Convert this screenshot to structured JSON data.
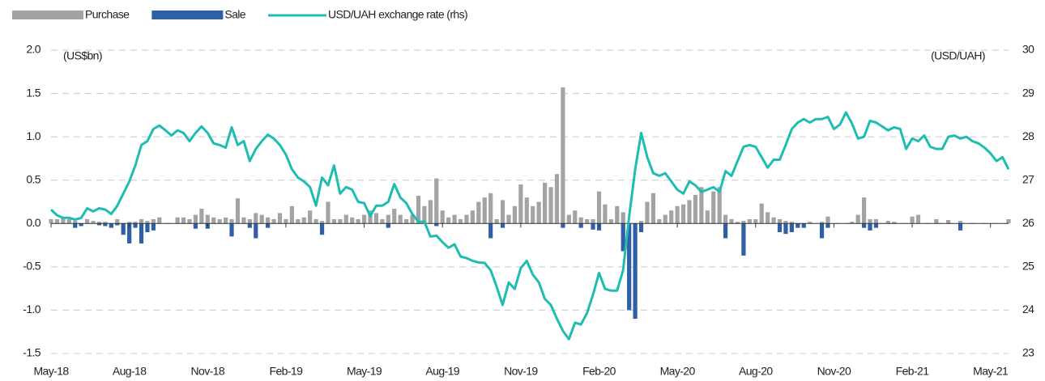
{
  "chart_data": {
    "type": "bar_line",
    "y_label": "(US$bn)",
    "y2_label": "(USD/UAH)",
    "categories": [
      "May-18",
      null,
      null,
      null,
      null,
      null,
      null,
      null,
      null,
      null,
      null,
      null,
      null,
      "Aug-18",
      null,
      null,
      null,
      null,
      null,
      null,
      null,
      null,
      null,
      null,
      null,
      null,
      "Nov-18",
      null,
      null,
      null,
      null,
      null,
      null,
      null,
      null,
      null,
      null,
      null,
      null,
      "Feb-19",
      null,
      null,
      null,
      null,
      null,
      null,
      null,
      null,
      null,
      null,
      null,
      null,
      "May-19",
      null,
      null,
      null,
      null,
      null,
      null,
      null,
      null,
      null,
      null,
      null,
      null,
      "Aug-19",
      null,
      null,
      null,
      null,
      null,
      null,
      null,
      null,
      null,
      null,
      null,
      null,
      "Nov-19",
      null,
      null,
      null,
      null,
      null,
      null,
      null,
      null,
      null,
      null,
      null,
      null,
      "Feb-20",
      null,
      null,
      null,
      null,
      null,
      null,
      null,
      null,
      null,
      null,
      null,
      null,
      "May-20",
      null,
      null,
      null,
      null,
      null,
      null,
      null,
      null,
      null,
      null,
      null,
      null,
      "Aug-20",
      null,
      null,
      null,
      null,
      null,
      null,
      null,
      null,
      null,
      null,
      null,
      null,
      "Nov-20",
      null,
      null,
      null,
      null,
      null,
      null,
      null,
      null,
      null,
      null,
      null,
      null,
      "Feb-21",
      null,
      null,
      null,
      null,
      null,
      null,
      null,
      null,
      null,
      null,
      null,
      null,
      "May-21",
      null,
      null,
      null
    ],
    "series": [
      {
        "name": "Purchase",
        "type": "bar",
        "color": "#a3a3a3",
        "values": [
          0.05,
          0.05,
          0.07,
          0.05,
          0.03,
          0,
          0.05,
          0.03,
          0.02,
          0.02,
          0,
          0.05,
          0,
          0.02,
          0.02,
          0.05,
          0.03,
          0.05,
          0.07,
          0,
          0,
          0.07,
          0.07,
          0.05,
          0.1,
          0.17,
          0.1,
          0.07,
          0.05,
          0.07,
          0.05,
          0.29,
          0.07,
          0.05,
          0.12,
          0.1,
          0.07,
          0.05,
          0.12,
          0.05,
          0.2,
          0.05,
          0.07,
          0.15,
          0.05,
          0.03,
          0.25,
          0.05,
          0.05,
          0.1,
          0.07,
          0.05,
          0.1,
          0.15,
          0.12,
          0.05,
          0.1,
          0.17,
          0.1,
          0.05,
          0.1,
          0.32,
          0.2,
          0.27,
          0.52,
          0.15,
          0.07,
          0.1,
          0.05,
          0.1,
          0.15,
          0.25,
          0.3,
          0.35,
          0.05,
          0.27,
          0.1,
          0.2,
          0.45,
          0.3,
          0.2,
          0.25,
          0.47,
          0.42,
          0.57,
          1.57,
          0.1,
          0.15,
          0.07,
          0.05,
          0.05,
          0.37,
          0.22,
          0.05,
          0.2,
          0.13,
          0,
          0,
          0.03,
          0.25,
          0.35,
          0.05,
          0.1,
          0.15,
          0.2,
          0.22,
          0.27,
          0.33,
          0.42,
          0.15,
          0.37,
          0.42,
          0.1,
          0.05,
          0.02,
          0.03,
          0.05,
          0.05,
          0.23,
          0.13,
          0.07,
          0.05,
          0.03,
          0.02,
          0,
          0,
          0.02,
          0,
          0.02,
          0.08,
          0,
          0,
          0,
          0.02,
          0.1,
          0.3,
          0.05,
          0.05,
          0,
          0.03,
          0.02,
          0,
          0,
          0.08,
          0.1,
          0,
          0,
          0.05,
          0,
          0.04,
          0,
          0.03,
          0,
          0,
          0,
          0,
          0,
          0,
          0,
          0.05
        ]
      },
      {
        "name": "Sale",
        "type": "bar",
        "color": "#2f5fa6",
        "values": [
          0,
          0,
          0,
          0,
          -0.05,
          -0.03,
          0,
          0,
          -0.02,
          -0.03,
          -0.05,
          -0.02,
          -0.13,
          -0.23,
          -0.05,
          -0.23,
          -0.1,
          -0.08,
          0,
          0,
          0,
          0,
          0,
          0,
          -0.06,
          0,
          -0.06,
          0,
          0,
          0,
          -0.15,
          0,
          0,
          -0.05,
          -0.17,
          0,
          -0.05,
          0,
          0,
          0,
          0,
          0,
          0,
          0,
          0,
          -0.13,
          0,
          0,
          0,
          0,
          0,
          0,
          0,
          0,
          0,
          0,
          -0.05,
          0,
          0,
          0,
          0,
          0,
          0,
          0,
          -0.03,
          0,
          0,
          0,
          0,
          0,
          0,
          0,
          0,
          -0.17,
          0,
          -0.05,
          0,
          0,
          0,
          0,
          0,
          0,
          0,
          0,
          0,
          -0.05,
          0,
          0,
          -0.05,
          0,
          -0.07,
          -0.08,
          0,
          0,
          0,
          -0.32,
          -1.0,
          -1.1,
          -0.1,
          0,
          0,
          0,
          0,
          0,
          0,
          0,
          0,
          0,
          0,
          0,
          0,
          0,
          -0.17,
          0,
          0,
          -0.37,
          0,
          0,
          0,
          0,
          0,
          -0.1,
          -0.12,
          -0.1,
          -0.05,
          -0.05,
          0,
          0,
          -0.17,
          -0.05,
          0,
          0,
          0,
          0,
          0,
          -0.05,
          -0.08,
          -0.05,
          0,
          0,
          0,
          0,
          0,
          0,
          0,
          0,
          0,
          0,
          0,
          0,
          0,
          -0.08,
          0,
          0,
          0,
          0,
          0,
          0,
          0,
          0
        ]
      },
      {
        "name": "USD/UAH exchange rate (rhs)",
        "type": "line",
        "axis": "y2",
        "color": "#1fbdb1",
        "values": [
          26.32,
          26.19,
          26.13,
          26.13,
          26.09,
          26.13,
          26.35,
          26.28,
          26.35,
          26.32,
          26.22,
          26.41,
          26.69,
          26.97,
          27.34,
          27.81,
          27.9,
          28.18,
          28.26,
          28.15,
          28.03,
          28.15,
          28.09,
          27.9,
          28.09,
          28.24,
          28.09,
          27.85,
          27.81,
          27.75,
          28.22,
          27.81,
          27.9,
          27.44,
          27.72,
          27.9,
          28.05,
          27.96,
          27.81,
          27.59,
          27.25,
          27.06,
          26.97,
          26.84,
          26.41,
          27.06,
          26.88,
          27.34,
          26.69,
          26.84,
          26.78,
          26.5,
          26.47,
          26.17,
          26.41,
          26.41,
          26.5,
          26.91,
          26.6,
          26.47,
          26.22,
          26.04,
          26.04,
          25.7,
          25.72,
          25.57,
          25.44,
          25.52,
          25.24,
          25.2,
          25.14,
          25.1,
          25.09,
          24.92,
          24.54,
          24.12,
          24.64,
          24.49,
          24.97,
          25.14,
          24.82,
          24.64,
          24.26,
          24.12,
          23.8,
          23.52,
          23.33,
          23.71,
          23.67,
          23.93,
          24.36,
          24.86,
          24.49,
          24.45,
          24.45,
          24.92,
          26.17,
          27.25,
          28.09,
          27.53,
          27.16,
          27.1,
          27.16,
          26.97,
          26.78,
          26.69,
          26.97,
          26.88,
          26.73,
          26.78,
          26.84,
          26.73,
          27.21,
          27.1,
          27.44,
          27.77,
          27.81,
          27.77,
          27.53,
          27.29,
          27.47,
          27.47,
          27.81,
          28.18,
          28.33,
          28.41,
          28.33,
          28.41,
          28.41,
          28.46,
          28.18,
          28.28,
          28.56,
          28.31,
          27.96,
          28.0,
          28.37,
          28.33,
          28.24,
          28.15,
          28.22,
          28.18,
          27.72,
          27.96,
          27.9,
          28.03,
          27.77,
          27.72,
          27.72,
          28.0,
          28.03,
          27.96,
          28.0,
          27.9,
          27.85,
          27.75,
          27.62,
          27.44,
          27.53,
          27.25
        ]
      }
    ],
    "ylim": [
      -1.5,
      2.0
    ],
    "yticks": [
      {
        "value": -1.5,
        "label": "-1.5"
      },
      {
        "value": -1.0,
        "label": "-1.0"
      },
      -0.5,
      {
        "value": 0,
        "label": "0.0"
      },
      0.5,
      {
        "value": 1.0,
        "label": "1.0"
      },
      1.5,
      {
        "value": 2.0,
        "label": "2.0"
      }
    ],
    "y2lim": [
      23,
      30
    ],
    "y2ticks": [
      23,
      24,
      25,
      26,
      27,
      28,
      29,
      30
    ],
    "grid": true,
    "legend": "top-left"
  }
}
